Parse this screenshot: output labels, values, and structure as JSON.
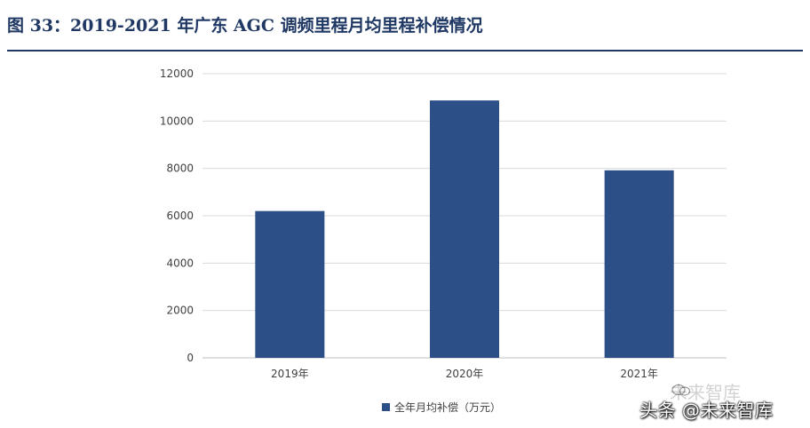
{
  "figure": {
    "title": "图 33：2019-2021 年广东 AGC 调频里程月均里程补偿情况"
  },
  "chart_data": {
    "type": "bar",
    "categories": [
      "2019年",
      "2020年",
      "2021年"
    ],
    "series": [
      {
        "name": "全年月均补偿（万元）",
        "values": [
          6200,
          10870,
          7920
        ]
      }
    ],
    "ylim": [
      0,
      12000
    ],
    "yticks": [
      "0",
      "2000",
      "4000",
      "6000",
      "8000",
      "10000",
      "12000"
    ],
    "ytick_values": [
      0,
      2000,
      4000,
      6000,
      8000,
      10000,
      12000
    ],
    "grid": true,
    "legend": "bottom",
    "colors": {
      "bar": "#2c4f87",
      "grid": "#d9d9d9",
      "title": "#1f3864"
    }
  },
  "watermark": {
    "text": "头条 @未来智库",
    "ghost_text": "未来智库"
  }
}
